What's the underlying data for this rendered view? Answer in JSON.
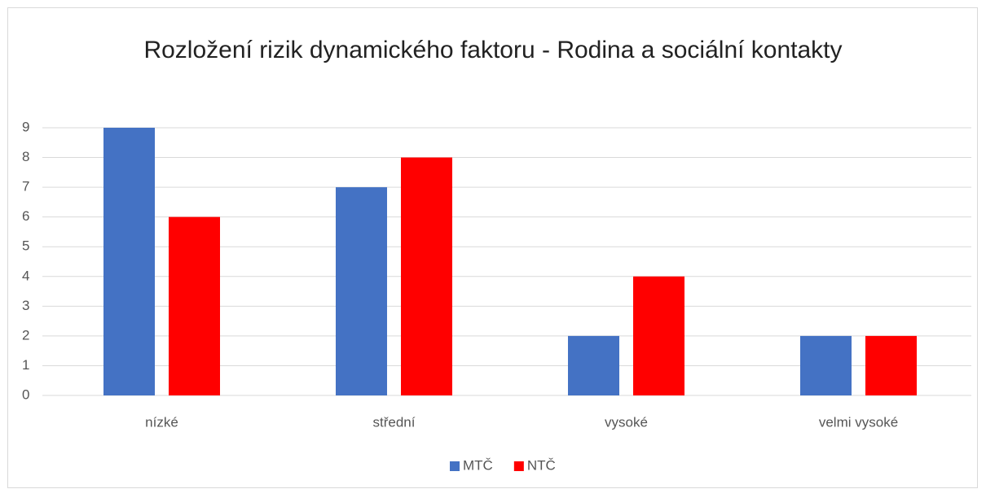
{
  "chart_data": {
    "type": "bar",
    "title": "Rozložení rizik dynamického faktoru - Rodina a sociální kontakty",
    "categories": [
      "nízké",
      "střední",
      "vysoké",
      "velmi vysoké"
    ],
    "series": [
      {
        "name": "MTČ",
        "color": "#4472c4",
        "values": [
          9,
          7,
          2,
          2
        ]
      },
      {
        "name": "NTČ",
        "color": "#ff0000",
        "values": [
          6,
          8,
          4,
          2
        ]
      }
    ],
    "ylim": [
      0,
      9
    ],
    "yticks": [
      0,
      1,
      2,
      3,
      4,
      5,
      6,
      7,
      8,
      9
    ],
    "grid": true,
    "legend": "bottom"
  }
}
